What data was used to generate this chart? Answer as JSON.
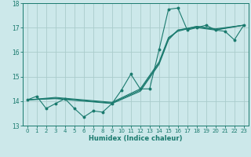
{
  "bg_color": "#cce8ea",
  "grid_color": "#aacccc",
  "line_color": "#1a7a6e",
  "xlabel": "Humidex (Indice chaleur)",
  "ylim": [
    13,
    18
  ],
  "xlim": [
    -0.5,
    23.5
  ],
  "yticks": [
    13,
    14,
    15,
    16,
    17,
    18
  ],
  "xticks": [
    0,
    1,
    2,
    3,
    4,
    5,
    6,
    7,
    8,
    9,
    10,
    11,
    12,
    13,
    14,
    15,
    16,
    17,
    18,
    19,
    20,
    21,
    22,
    23
  ],
  "line1_x": [
    0,
    1,
    2,
    3,
    4,
    5,
    6,
    7,
    8,
    9,
    10,
    11,
    12,
    13,
    14,
    15,
    16,
    17,
    18,
    19,
    20,
    21,
    22,
    23
  ],
  "line1_y": [
    14.05,
    14.2,
    13.7,
    13.9,
    14.1,
    13.7,
    13.35,
    13.6,
    13.55,
    13.9,
    14.45,
    15.1,
    14.5,
    14.5,
    16.1,
    17.75,
    17.8,
    16.9,
    17.0,
    17.1,
    16.9,
    16.85,
    16.5,
    17.1
  ],
  "line2_x": [
    0,
    3,
    9,
    12,
    14,
    15,
    16,
    18,
    20,
    23
  ],
  "line2_y": [
    14.05,
    14.1,
    13.9,
    14.4,
    15.5,
    16.5,
    16.9,
    17.0,
    16.9,
    17.1
  ],
  "line3_x": [
    0,
    3,
    9,
    12,
    14,
    15,
    16,
    18,
    20,
    23
  ],
  "line3_y": [
    14.05,
    14.15,
    13.95,
    14.5,
    15.6,
    16.6,
    16.85,
    17.05,
    16.92,
    17.1
  ],
  "line4_x": [
    0,
    3,
    9,
    12,
    14,
    15,
    16,
    18,
    20,
    23
  ],
  "line4_y": [
    14.05,
    14.12,
    13.92,
    14.45,
    15.55,
    16.55,
    16.9,
    17.05,
    16.95,
    17.1
  ]
}
